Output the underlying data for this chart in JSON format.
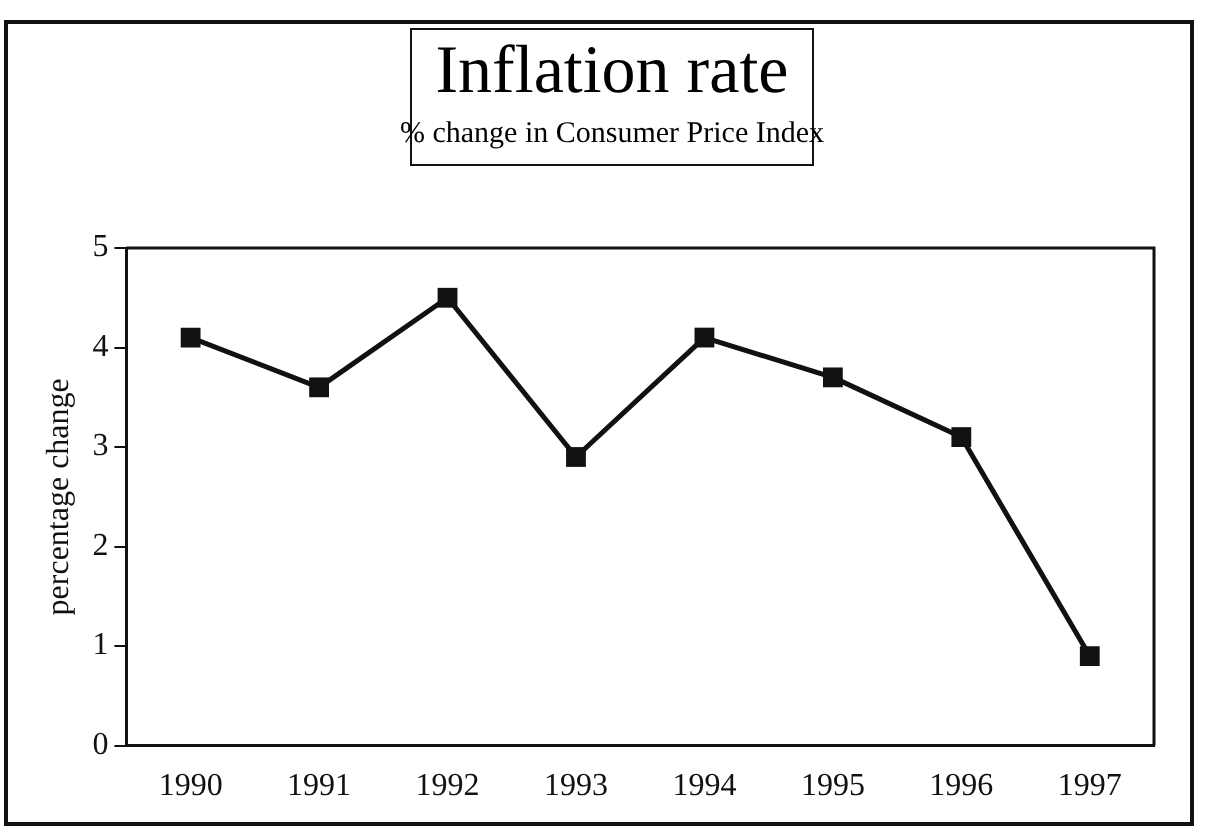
{
  "chart_data": {
    "type": "line",
    "title": "Inflation rate",
    "subtitle": "% change in Consumer Price Index",
    "ylabel": "percentage change",
    "categories": [
      "1990",
      "1991",
      "1992",
      "1993",
      "1994",
      "1995",
      "1996",
      "1997"
    ],
    "series": [
      {
        "color": "#111111",
        "values": [
          4.1,
          3.6,
          4.5,
          2.9,
          4.1,
          3.7,
          3.1,
          0.9
        ]
      }
    ],
    "ylim": [
      0,
      5
    ],
    "yticks": [
      0,
      1,
      2,
      3,
      4,
      5
    ],
    "grid": false,
    "legend": false,
    "marker": "square",
    "line_style": "solid"
  }
}
